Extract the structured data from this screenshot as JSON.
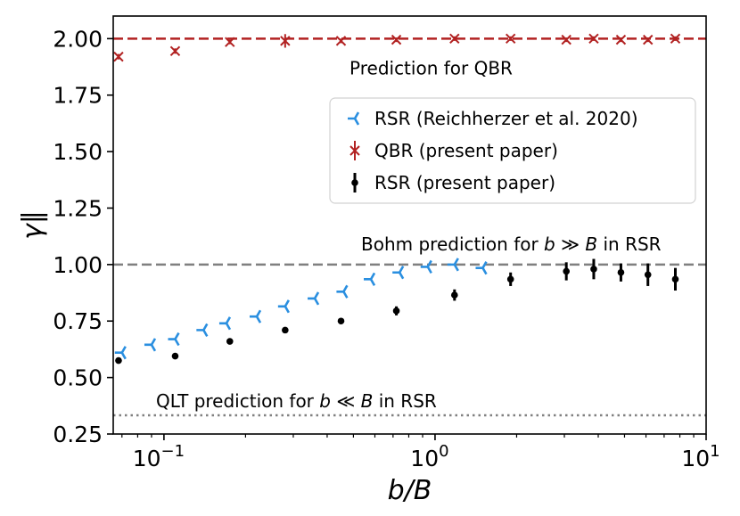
{
  "chart_data": {
    "type": "scatter",
    "xlabel": "b/B",
    "ylabel": "γ‖",
    "xscale": "log",
    "xlim": [
      0.065,
      10
    ],
    "ylim": [
      0.25,
      2.1
    ],
    "x_ticks": [
      {
        "value": 0.1,
        "base": "10",
        "exp": "−1"
      },
      {
        "value": 1,
        "base": "10",
        "exp": "0"
      },
      {
        "value": 10,
        "base": "10",
        "exp": "1"
      }
    ],
    "y_ticks": [
      {
        "value": 0.25,
        "label": "0.25"
      },
      {
        "value": 0.5,
        "label": "0.50"
      },
      {
        "value": 0.75,
        "label": "0.75"
      },
      {
        "value": 1.0,
        "label": "1.00"
      },
      {
        "value": 1.25,
        "label": "1.25"
      },
      {
        "value": 1.5,
        "label": "1.50"
      },
      {
        "value": 1.75,
        "label": "1.75"
      },
      {
        "value": 2.0,
        "label": "2.00"
      }
    ],
    "reference_lines": [
      {
        "name": "Prediction for QBR",
        "y": 2.0,
        "color": "#b22222",
        "style": "dashed"
      },
      {
        "name": "Bohm prediction for b ≫ B in RSR",
        "y": 1.0,
        "color": "#808080",
        "style": "dashed"
      },
      {
        "name": "QLT prediction for b ≪ B in RSR",
        "y": 0.333,
        "color": "#808080",
        "style": "dotted"
      }
    ],
    "annotations": [
      {
        "text": "Prediction for QBR",
        "x": 1.2,
        "y": 1.87
      },
      {
        "text_parts": [
          "Bohm prediction for ",
          "b",
          " ≫ ",
          "B",
          " in RSR"
        ],
        "x": 1.2,
        "y": 1.09
      },
      {
        "text_parts": [
          "QLT prediction for ",
          "b",
          " ≪ ",
          "B",
          " in RSR"
        ],
        "x": 0.22,
        "y": 0.395
      }
    ],
    "series": [
      {
        "name": "RSR (Reichherzer et al. 2020)",
        "marker": "tri_left",
        "color": "#2a8fe0",
        "x": [
          0.07,
          0.09,
          0.11,
          0.14,
          0.17,
          0.22,
          0.28,
          0.36,
          0.46,
          0.58,
          0.74,
          0.94,
          1.18,
          1.5
        ],
        "y": [
          0.61,
          0.645,
          0.67,
          0.71,
          0.74,
          0.77,
          0.815,
          0.85,
          0.88,
          0.935,
          0.965,
          0.99,
          1.0,
          0.985
        ]
      },
      {
        "name": "QBR (present paper)",
        "marker": "x",
        "color": "#b22222",
        "x": [
          0.068,
          0.11,
          0.175,
          0.28,
          0.45,
          0.72,
          1.18,
          1.9,
          3.05,
          3.85,
          4.85,
          6.1,
          7.7
        ],
        "y": [
          1.92,
          1.945,
          1.985,
          1.99,
          1.99,
          1.995,
          2.0,
          2.0,
          1.995,
          2.0,
          1.995,
          1.995,
          2.0
        ],
        "err": [
          0.012,
          0.012,
          0.01,
          0.03,
          0.01,
          0.01,
          0.01,
          0.01,
          0.01,
          0.01,
          0.01,
          0.01,
          0.01
        ]
      },
      {
        "name": "RSR (present paper)",
        "marker": "o",
        "color": "#000000",
        "x": [
          0.068,
          0.11,
          0.175,
          0.28,
          0.45,
          0.72,
          1.18,
          1.9,
          3.05,
          3.85,
          4.85,
          6.1,
          7.7
        ],
        "y": [
          0.575,
          0.595,
          0.66,
          0.71,
          0.75,
          0.795,
          0.865,
          0.935,
          0.97,
          0.98,
          0.965,
          0.955,
          0.935
        ],
        "err": [
          0.01,
          0.01,
          0.01,
          0.01,
          0.01,
          0.02,
          0.025,
          0.03,
          0.04,
          0.045,
          0.04,
          0.05,
          0.05
        ]
      }
    ],
    "legend": {
      "placement": "upper-right",
      "entries": [
        "RSR (Reichherzer et al. 2020)",
        "QBR (present paper)",
        "RSR (present paper)"
      ]
    }
  }
}
